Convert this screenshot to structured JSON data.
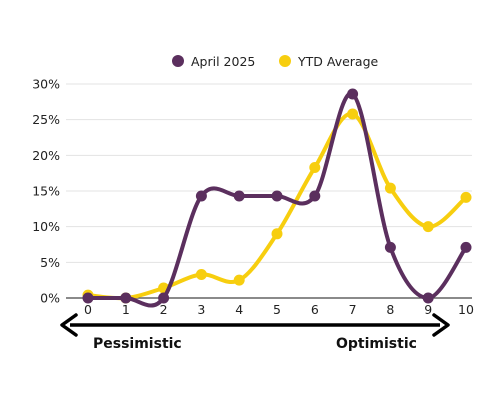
{
  "chart_data": {
    "type": "line",
    "title": "",
    "xlabel": "",
    "ylabel": "",
    "categories": [
      "0",
      "1",
      "2",
      "3",
      "4",
      "5",
      "6",
      "7",
      "8",
      "9",
      "10"
    ],
    "x": [
      0,
      1,
      2,
      3,
      4,
      5,
      6,
      7,
      8,
      9,
      10
    ],
    "y_ticks": [
      "0%",
      "5%",
      "10%",
      "15%",
      "20%",
      "25%",
      "30%"
    ],
    "ylim": [
      0,
      30
    ],
    "y_unit": "%",
    "grid": "horizontal",
    "legend_position": "top",
    "smooth": true,
    "series": [
      {
        "name": "April 2025",
        "color": "#5b2f5e",
        "values": [
          0,
          0,
          0,
          14.3,
          14.3,
          14.3,
          14.3,
          28.6,
          7.1,
          0,
          7.1
        ]
      },
      {
        "name": "YTD Average",
        "color": "#f7ce0f",
        "values": [
          0.4,
          0,
          1.4,
          3.3,
          2.5,
          9.0,
          18.3,
          25.8,
          15.4,
          10.0,
          14.1
        ]
      }
    ],
    "scale_labels": {
      "left": "Pessimistic",
      "right": "Optimistic"
    }
  }
}
